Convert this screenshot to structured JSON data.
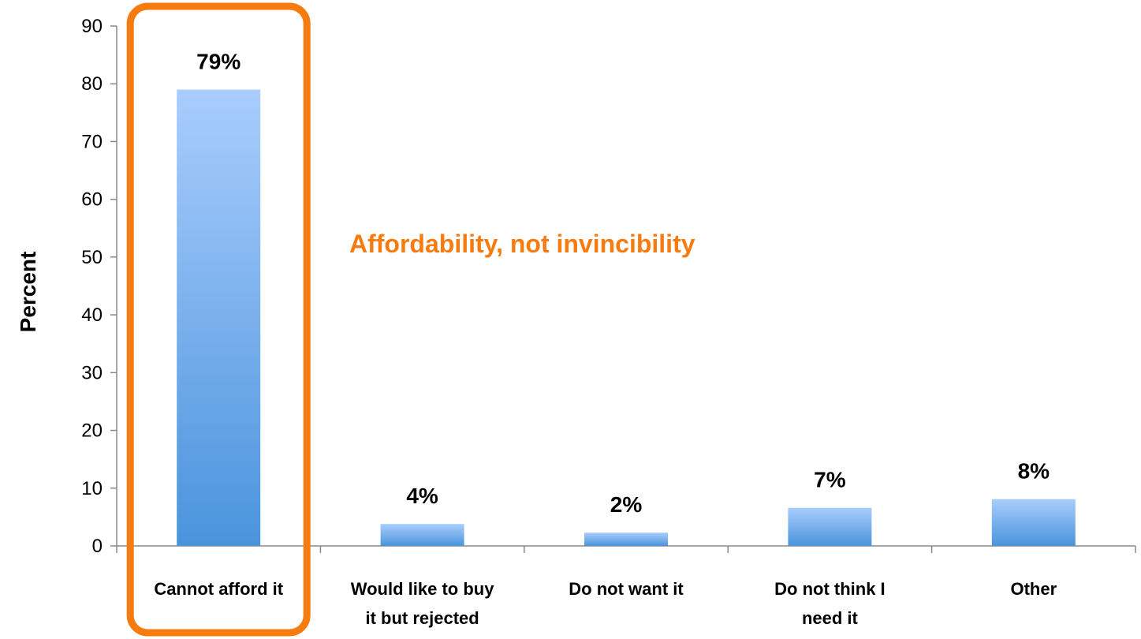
{
  "chart_data": {
    "type": "bar",
    "ylabel": "Percent",
    "xlabel": "",
    "ylim": [
      0,
      90
    ],
    "yticks": [
      0,
      10,
      20,
      30,
      40,
      50,
      60,
      70,
      80,
      90
    ],
    "categories": [
      [
        "Cannot afford it"
      ],
      [
        "Would like to buy",
        "it but rejected"
      ],
      [
        "Do not want it"
      ],
      [
        "Do not think I",
        "need it"
      ],
      [
        "Other"
      ]
    ],
    "values": [
      79,
      3.8,
      2.3,
      6.6,
      8.1
    ],
    "data_labels": [
      "79%",
      "4%",
      "2%",
      "7%",
      "8%"
    ],
    "annotation": "Affordability, not invincibility",
    "highlighted_category_index": 0,
    "grid": false,
    "colors": {
      "bar_top": "#a9cdfd",
      "bar_bottom": "#4a94dc",
      "highlight": "#f87b10",
      "annotation": "#f87b10",
      "axis": "#888888"
    }
  }
}
